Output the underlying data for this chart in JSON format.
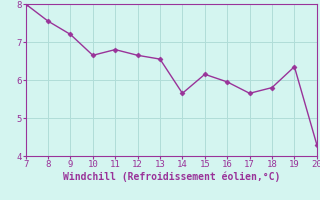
{
  "x": [
    7,
    8,
    9,
    10,
    11,
    12,
    13,
    14,
    15,
    16,
    17,
    18,
    19,
    20
  ],
  "y": [
    8.0,
    7.55,
    7.2,
    6.65,
    6.8,
    6.65,
    6.55,
    5.65,
    6.15,
    5.95,
    5.65,
    5.8,
    6.35,
    4.3
  ],
  "line_color": "#993399",
  "marker": "D",
  "marker_size": 2.5,
  "xlabel": "Windchill (Refroidissement éolien,°C)",
  "xlim": [
    7,
    20
  ],
  "ylim": [
    4,
    8
  ],
  "xticks": [
    7,
    8,
    9,
    10,
    11,
    12,
    13,
    14,
    15,
    16,
    17,
    18,
    19,
    20
  ],
  "yticks": [
    4,
    5,
    6,
    7,
    8
  ],
  "background_color": "#d4f5f0",
  "grid_color": "#b0ddd8",
  "tick_color": "#993399",
  "label_color": "#993399",
  "font_size": 6.5,
  "xlabel_fontsize": 7.0,
  "linewidth": 1.0
}
